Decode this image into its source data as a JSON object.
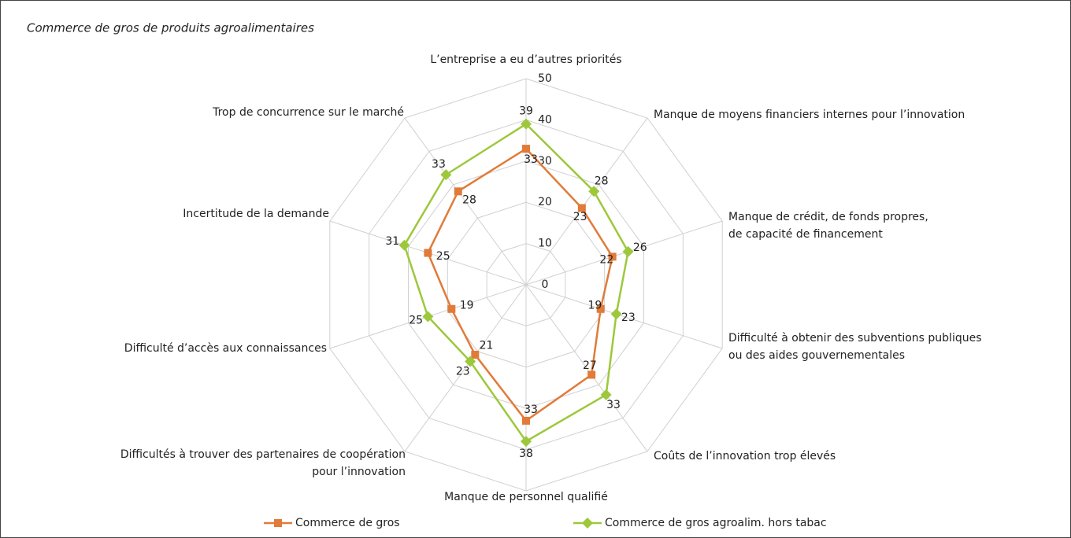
{
  "chart_data": {
    "type": "radar",
    "title": "Commerce de gros de produits agroalimentaires",
    "categories": [
      "L’entreprise a eu d’autres priorités",
      "Manque de moyens financiers internes pour l’innovation",
      "Manque de crédit, de fonds propres,\nde capacité de financement",
      "Difficulté à obtenir des subventions publiques\nou des aides gouvernementales",
      "Coûts de l’innovation trop élevés",
      "Manque de personnel qualifié",
      "Difficultés à trouver des partenaires de coopération\npour l’innovation",
      "Difficulté d’accès aux connaissances",
      "Incertitude de la demande",
      "Trop de concurrence sur le marché"
    ],
    "series": [
      {
        "name": "Commerce de gros",
        "color": "#e07b39",
        "values": [
          33,
          23,
          22,
          19,
          27,
          33,
          21,
          19,
          25,
          28
        ]
      },
      {
        "name": "Commerce de gros agroalim. hors tabac",
        "color": "#9dc83b",
        "values": [
          39,
          28,
          26,
          23,
          33,
          38,
          23,
          25,
          31,
          33
        ]
      }
    ],
    "ylim": [
      0,
      50
    ],
    "yticks": [
      0,
      10,
      20,
      30,
      40,
      50
    ],
    "grid": true,
    "legend": "bottom"
  }
}
